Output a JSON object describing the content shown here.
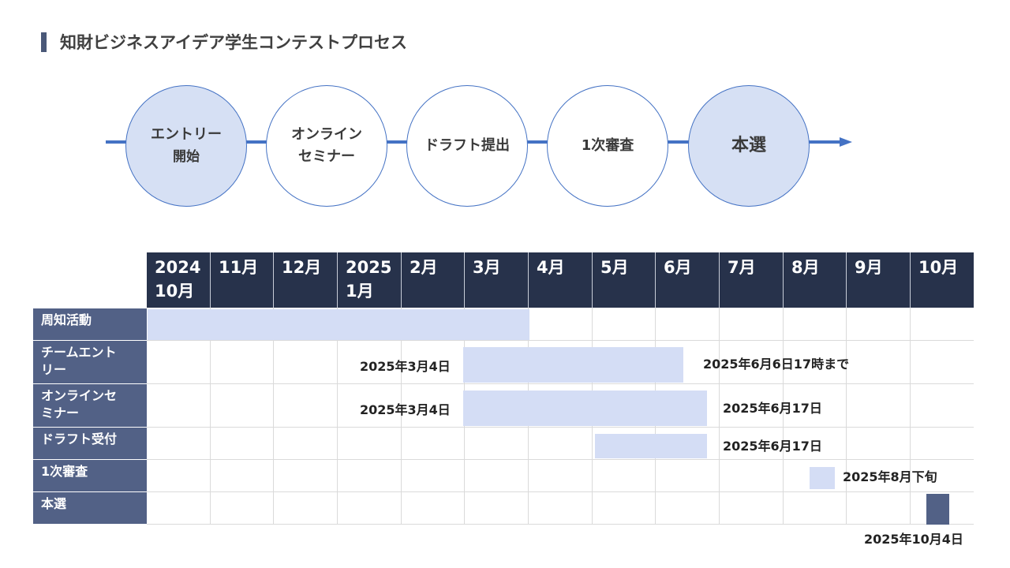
{
  "title": "知財ビジネスアイデア学生コンテストプロセス",
  "flow": {
    "steps": [
      {
        "line1": "エントリー",
        "line2": "開始",
        "filled": true
      },
      {
        "line1": "オンライン",
        "line2": "セミナー",
        "filled": false
      },
      {
        "line1": "ドラフト提出",
        "line2": "",
        "filled": false
      },
      {
        "line1": "1次審査",
        "line2": "",
        "filled": false
      },
      {
        "line1": "本選",
        "line2": "",
        "filled": true
      }
    ]
  },
  "gantt": {
    "months": [
      "2024\n10月",
      "11月",
      "12月",
      "2025\n1月",
      "2月",
      "3月",
      "4月",
      "5月",
      "6月",
      "7月",
      "8月",
      "9月",
      "10月"
    ],
    "rows": [
      {
        "label": "周知活動",
        "start_note": "",
        "end_note": ""
      },
      {
        "label": "チームエント\nリー",
        "start_note": "2025年3月4日",
        "end_note": "2025年6月6日17時まで"
      },
      {
        "label": "オンラインセ\nミナー",
        "start_note": "2025年3月4日",
        "end_note": "2025年6月17日"
      },
      {
        "label": "ドラフト受付",
        "start_note": "",
        "end_note": "2025年6月17日"
      },
      {
        "label": "1次審査",
        "start_note": "",
        "end_note": "2025年8月下旬"
      },
      {
        "label": "本選",
        "start_note": "",
        "end_note": "2025年10月4日"
      }
    ]
  },
  "colors": {
    "header_bg": "#27324b",
    "label_bg": "#526186",
    "bar_light": "#d4ddf5",
    "bar_dark": "#526186",
    "flow_line": "#4472c4",
    "circle_fill": "#d6e0f4"
  }
}
